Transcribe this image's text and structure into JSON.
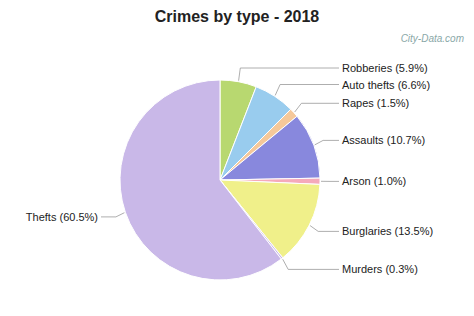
{
  "chart_data": {
    "type": "pie",
    "title": "Crimes by type - 2018",
    "categories": [
      "Robberies (5.9%)",
      "Auto thefts (6.6%)",
      "Rapes (1.5%)",
      "Assaults (10.7%)",
      "Arson (1.0%)",
      "Burglaries (13.5%)",
      "Murders (0.3%)",
      "Thefts (60.5%)"
    ],
    "values": [
      5.9,
      6.6,
      1.5,
      10.7,
      1.0,
      13.5,
      0.3,
      60.5
    ],
    "colors": [
      "#b8d870",
      "#99ccee",
      "#f5c89a",
      "#8888dd",
      "#f5aabb",
      "#f0f08a",
      "#c9b8e8",
      "#c9b8e8"
    ],
    "annotations": [
      "City-Data.com"
    ]
  }
}
